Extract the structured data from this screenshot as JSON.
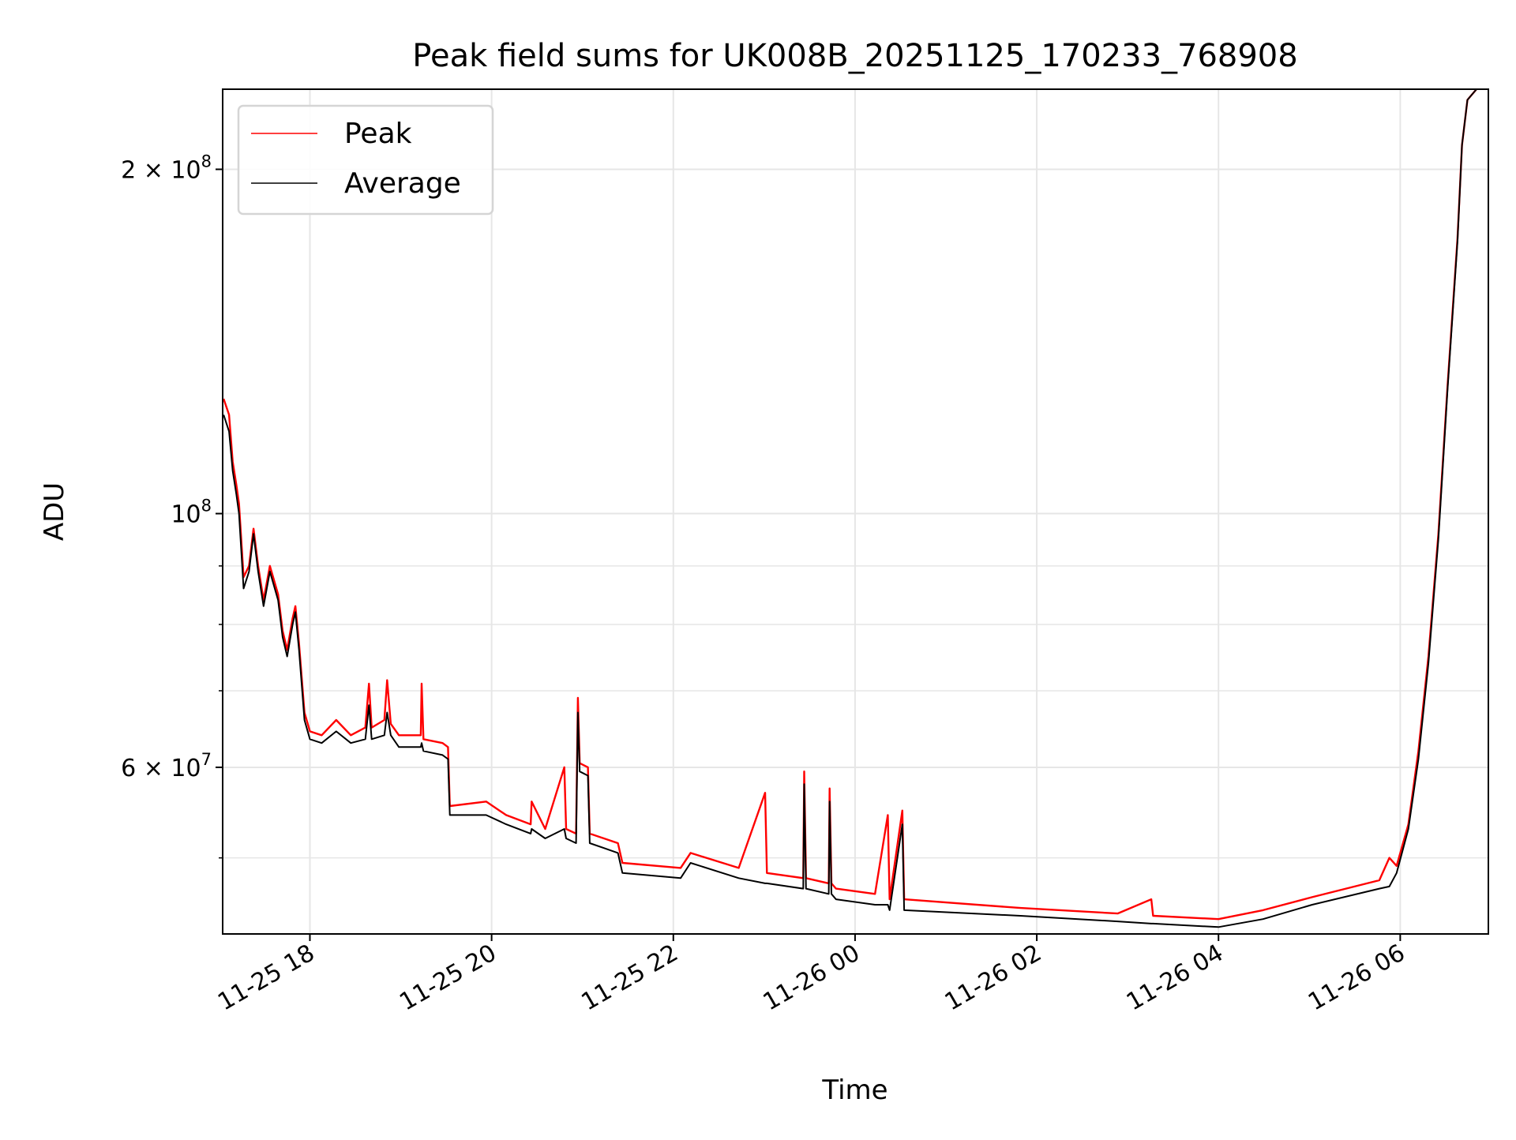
{
  "chart_data": {
    "type": "line",
    "title": "Peak field sums for UK008B_20251125_170233_768908",
    "xlabel": "Time",
    "ylabel": "ADU",
    "yscale": "log",
    "x_units": "hours since 11-25 00:00",
    "y_units": "1e7 ADU",
    "xlim": [
      17.04,
      30.97
    ],
    "ylim": [
      4.29,
      23.5
    ],
    "grid": true,
    "legend": {
      "placement": "top-left",
      "entries": [
        "Peak",
        "Average"
      ]
    },
    "colors": {
      "Peak": "#ff0000",
      "Average": "#000000",
      "grid": "#e6e6e6"
    },
    "x_ticks": [
      {
        "value": 18,
        "label": "11-25 18"
      },
      {
        "value": 20,
        "label": "11-25 20"
      },
      {
        "value": 22,
        "label": "11-25 22"
      },
      {
        "value": 24,
        "label": "11-26 00"
      },
      {
        "value": 26,
        "label": "11-26 02"
      },
      {
        "value": 28,
        "label": "11-26 04"
      },
      {
        "value": 30,
        "label": "11-26 06"
      }
    ],
    "y_ticks": [
      {
        "value": 20,
        "mantissa": "2 × 10",
        "exp": "8"
      },
      {
        "value": 10,
        "mantissa": "10",
        "exp": "8"
      },
      {
        "value": 6,
        "mantissa": "6 × 10",
        "exp": "7"
      }
    ],
    "y_minor_ticks": [
      5,
      7,
      8,
      9
    ],
    "x": [
      17.05,
      17.11,
      17.15,
      17.19,
      17.22,
      17.27,
      17.33,
      17.38,
      17.43,
      17.49,
      17.56,
      17.65,
      17.7,
      17.75,
      17.81,
      17.84,
      17.88,
      17.94,
      18.0,
      18.13,
      18.29,
      18.45,
      18.61,
      18.65,
      18.68,
      18.82,
      18.85,
      18.89,
      18.98,
      19.22,
      19.23,
      19.25,
      19.46,
      19.52,
      19.54,
      19.94,
      20.16,
      20.43,
      20.44,
      20.59,
      20.8,
      20.82,
      20.93,
      20.95,
      20.97,
      21.06,
      21.08,
      21.39,
      21.44,
      22.08,
      22.19,
      22.72,
      23.01,
      23.03,
      23.43,
      23.44,
      23.46,
      23.71,
      23.72,
      23.74,
      23.79,
      24.22,
      24.36,
      24.38,
      24.52,
      24.54,
      25.82,
      26.89,
      27.26,
      27.28,
      28.0,
      28.49,
      29.03,
      29.77,
      29.88,
      29.96,
      30.09,
      30.2,
      30.31,
      30.42,
      30.52,
      30.63,
      30.68,
      30.74,
      30.84,
      30.96
    ],
    "series": [
      {
        "name": "Peak",
        "values": [
          12.6,
          12.2,
          11.1,
          10.6,
          10.2,
          8.8,
          9.0,
          9.7,
          9.0,
          8.4,
          9.0,
          8.5,
          7.9,
          7.6,
          8.1,
          8.3,
          7.7,
          6.7,
          6.45,
          6.4,
          6.6,
          6.4,
          6.5,
          7.1,
          6.5,
          6.6,
          7.15,
          6.55,
          6.4,
          6.4,
          7.1,
          6.35,
          6.3,
          6.25,
          5.55,
          5.6,
          5.45,
          5.35,
          5.6,
          5.3,
          6.0,
          5.3,
          5.25,
          6.9,
          6.05,
          6.0,
          5.25,
          5.15,
          4.95,
          4.9,
          5.05,
          4.9,
          5.7,
          4.85,
          4.8,
          5.95,
          4.8,
          4.75,
          5.75,
          4.75,
          4.7,
          4.65,
          5.45,
          4.6,
          5.5,
          4.6,
          4.52,
          4.47,
          4.6,
          4.45,
          4.42,
          4.5,
          4.62,
          4.78,
          5.0,
          4.92,
          5.35,
          6.2,
          7.5,
          9.6,
          12.9,
          17.4,
          21,
          23,
          23.5,
          23.6
        ]
      },
      {
        "name": "Average",
        "values": [
          12.2,
          11.8,
          10.9,
          10.4,
          10.0,
          8.6,
          8.9,
          9.6,
          8.9,
          8.3,
          8.9,
          8.4,
          7.8,
          7.5,
          8.0,
          8.2,
          7.6,
          6.6,
          6.35,
          6.3,
          6.45,
          6.3,
          6.35,
          6.8,
          6.35,
          6.4,
          6.7,
          6.4,
          6.25,
          6.25,
          6.3,
          6.2,
          6.15,
          6.1,
          5.45,
          5.45,
          5.35,
          5.25,
          5.3,
          5.2,
          5.3,
          5.2,
          5.15,
          6.7,
          5.95,
          5.9,
          5.15,
          5.05,
          4.85,
          4.8,
          4.95,
          4.8,
          4.75,
          4.75,
          4.7,
          5.8,
          4.7,
          4.65,
          5.6,
          4.65,
          4.6,
          4.55,
          4.55,
          4.5,
          5.35,
          4.5,
          4.45,
          4.4,
          4.38,
          4.38,
          4.35,
          4.42,
          4.55,
          4.7,
          4.72,
          4.85,
          5.3,
          6.1,
          7.4,
          9.5,
          12.8,
          17.3,
          21,
          23,
          23.5,
          23.6
        ]
      }
    ]
  }
}
